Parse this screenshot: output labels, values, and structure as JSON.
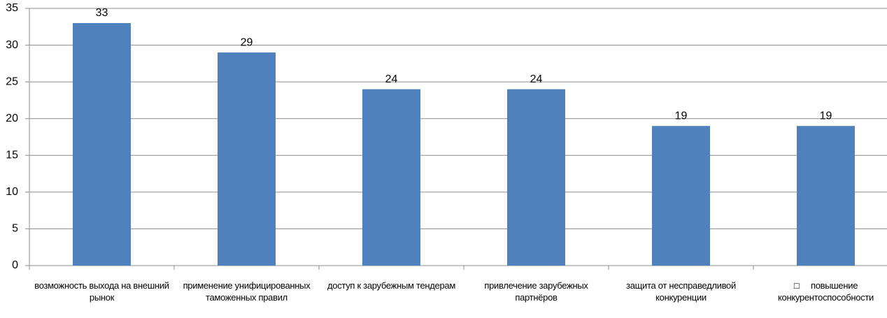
{
  "chart_data": {
    "type": "bar",
    "categories": [
      "возможность выхода на внешний рынок",
      "применение унифицированных таможенных правил",
      "доступ к зарубежным тендерам",
      "привлечение зарубежных партнёров",
      "защита от несправедливой конкуренции",
      "□     повышение конкурентоспособности"
    ],
    "values": [
      33,
      29,
      24,
      24,
      19,
      19
    ],
    "color": "#4f81bd",
    "ylim": [
      0,
      35
    ],
    "yticks": [
      0,
      5,
      10,
      15,
      20,
      25,
      30,
      35
    ],
    "grid": true
  }
}
